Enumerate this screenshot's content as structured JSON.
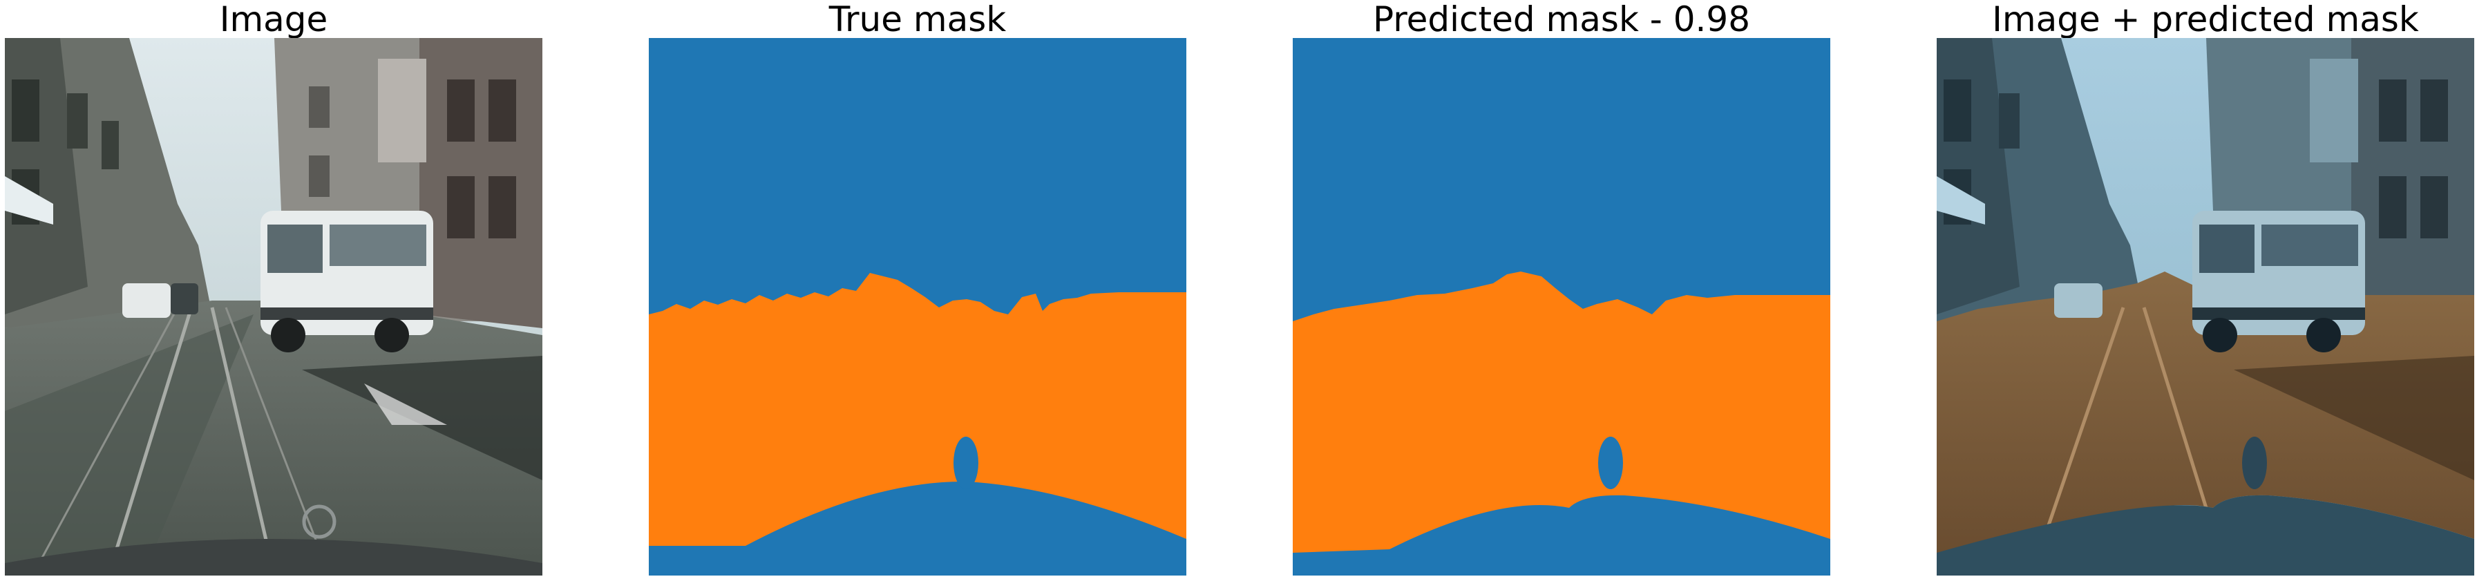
{
  "panels": [
    {
      "id": "image",
      "title": "Image"
    },
    {
      "id": "true_mask",
      "title": "True mask"
    },
    {
      "id": "predicted_mask",
      "title": "Predicted mask - 0.98"
    },
    {
      "id": "overlay",
      "title": "Image + predicted mask"
    }
  ],
  "colors": {
    "background_class": "#1f77b4",
    "road_class": "#ff7f0e",
    "page_background": "#ffffff"
  }
}
